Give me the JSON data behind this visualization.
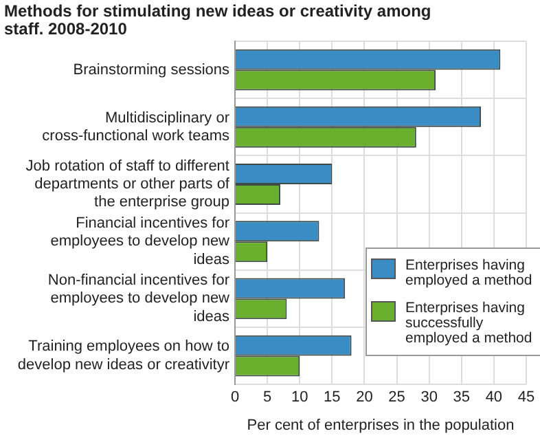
{
  "chart_data": {
    "type": "bar",
    "orientation": "horizontal",
    "title": "Methods for stimulating new ideas or creativity among staff. 2008-2010",
    "xlabel": "Per cent of enterprises in the population",
    "categories": [
      "Brainstorming sessions",
      "Multidisciplinary or cross-functional work teams",
      "Job rotation of staff to different departments or other parts of the enterprise group",
      "Financial incentives for employees to develop new ideas",
      "Non-financial incentives for employees to develop new ideas",
      "Training employees on how to develop new ideas or creativityr"
    ],
    "series": [
      {
        "name": "Enterprises having employed a method",
        "color": "#3a8cc4",
        "values": [
          41,
          38,
          15,
          13,
          17,
          18
        ]
      },
      {
        "name": "Enterprises having successfully employed a method",
        "color": "#6aaf2e",
        "values": [
          31,
          28,
          7,
          5,
          8,
          10
        ]
      }
    ],
    "xlim": [
      0,
      45
    ],
    "xticks": [
      0,
      5,
      10,
      15,
      20,
      25,
      30,
      35,
      40,
      45
    ],
    "grid": true,
    "legend": "bottom right"
  }
}
